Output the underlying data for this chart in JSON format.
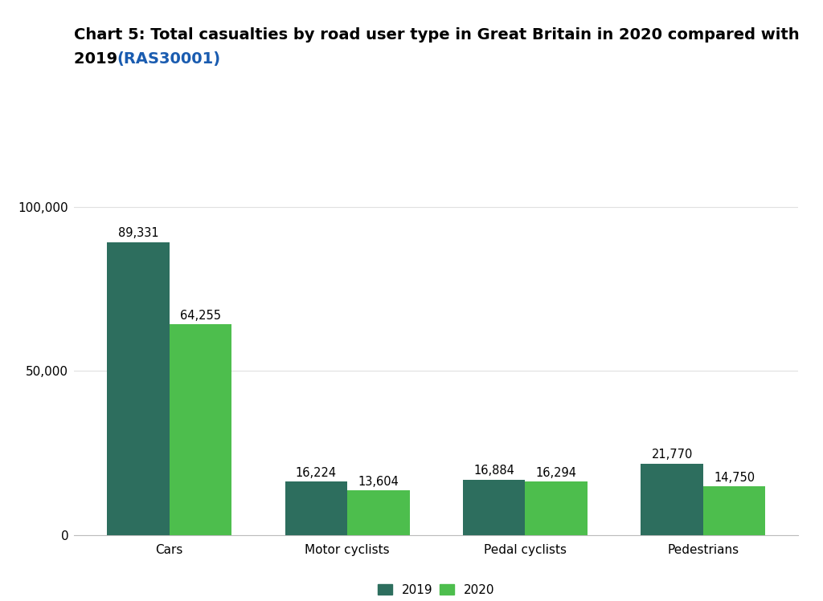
{
  "title_black": "Chart 5: Total casualties by road user type in Great Britain in 2020 compared with\n2019 ",
  "title_link_text": "(RAS30001)",
  "categories": [
    "Cars",
    "Motor cyclists",
    "Pedal cyclists",
    "Pedestrians"
  ],
  "values_2019": [
    89331,
    16224,
    16884,
    21770
  ],
  "values_2020": [
    64255,
    13604,
    16294,
    14750
  ],
  "labels_2019": [
    "89,331",
    "16,224",
    "16,884",
    "21,770"
  ],
  "labels_2020": [
    "64,255",
    "13,604",
    "16,294",
    "14,750"
  ],
  "color_2019": "#2d6e5e",
  "color_2020": "#4dbe4d",
  "ylim": [
    0,
    110000
  ],
  "yticks": [
    0,
    50000,
    100000
  ],
  "ytick_labels": [
    "0",
    "50,000",
    "100,000"
  ],
  "bar_width": 0.35,
  "legend_labels": [
    "2019",
    "2020"
  ],
  "background_color": "#ffffff",
  "title_fontsize": 14,
  "tick_fontsize": 11,
  "label_fontsize": 10.5,
  "link_color": "#1a5cb0"
}
